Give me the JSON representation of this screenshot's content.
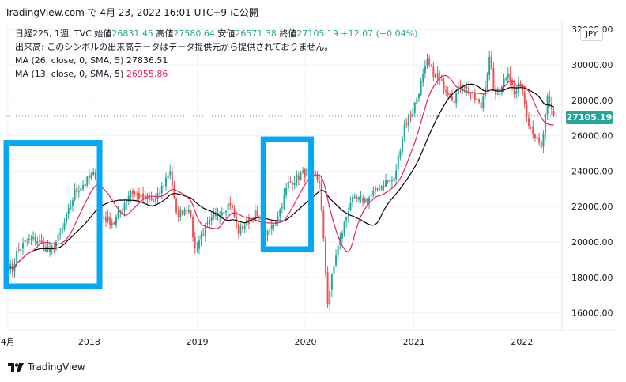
{
  "header": {
    "text": "TradingView.com で 4月 23, 2022 16:01 UTC+9 に公開"
  },
  "legend": {
    "symbol_info": "日経225, 1週, TVC",
    "open_label": "始値",
    "open_value": "26831.45",
    "high_label": "高値",
    "high_value": "27580.64",
    "low_label": "安値",
    "low_value": "26571.38",
    "close_label": "終値",
    "close_value": "27105.19",
    "change": "+12.07 (+0.04%)",
    "volume_note": "出来高: このシンボルの出来高データはデータ提供元から提供されておりません。",
    "ma26_label": "MA (26, close, 0, SMA, 5)",
    "ma26_value": "27836.51",
    "ma13_label": "MA (13, close, 0, SMA, 5)",
    "ma13_value": "26955.86"
  },
  "price_scale": {
    "currency": "JPY",
    "last_price": "27105.19"
  },
  "footer": {
    "brand": "TradingView"
  },
  "colors": {
    "up": "#26a69a",
    "down": "#ef5350",
    "ma26": "#000000",
    "ma13": "#e91e63",
    "highlight_box": "#03a9f4"
  },
  "chart_data": {
    "type": "candlestick",
    "interval": "1週",
    "ylim": [
      15000,
      32500
    ],
    "yticks": [
      16000,
      18000,
      20000,
      22000,
      24000,
      26000,
      28000,
      30000,
      32000
    ],
    "ytick_labels": [
      "16000.00",
      "18000.00",
      "20000.00",
      "22000.00",
      "24000.00",
      "26000.00",
      "28000.00",
      "30000.00",
      "32000.00"
    ],
    "xticks": [
      "2017-04-01",
      "2018-01-01",
      "2019-01-01",
      "2020-01-01",
      "2021-01-01",
      "2022-01-01"
    ],
    "xtick_labels": [
      "4月",
      "2018",
      "2019",
      "2020",
      "2021",
      "2022"
    ],
    "xlim": [
      "2017-03-27",
      "2022-05-16"
    ],
    "last_close": 27105.19,
    "price_anchors": [
      [
        "2017-04-03",
        18700
      ],
      [
        "2017-04-17",
        18400
      ],
      [
        "2017-05-01",
        19400
      ],
      [
        "2017-06-05",
        20100
      ],
      [
        "2017-07-10",
        20100
      ],
      [
        "2017-08-21",
        19400
      ],
      [
        "2017-09-25",
        20400
      ],
      [
        "2017-10-23",
        21700
      ],
      [
        "2017-11-13",
        22800
      ],
      [
        "2018-01-08",
        23700
      ],
      [
        "2018-01-22",
        23800
      ],
      [
        "2018-02-12",
        21400
      ],
      [
        "2018-03-26",
        21100
      ],
      [
        "2018-05-21",
        22900
      ],
      [
        "2018-06-25",
        22500
      ],
      [
        "2018-08-13",
        22300
      ],
      [
        "2018-10-01",
        24100
      ],
      [
        "2018-10-22",
        21500
      ],
      [
        "2018-12-03",
        22000
      ],
      [
        "2018-12-24",
        19600
      ],
      [
        "2019-01-21",
        20600
      ],
      [
        "2019-03-04",
        21500
      ],
      [
        "2019-04-22",
        22200
      ],
      [
        "2019-05-20",
        20600
      ],
      [
        "2019-07-15",
        21600
      ],
      [
        "2019-08-26",
        20400
      ],
      [
        "2019-10-07",
        21800
      ],
      [
        "2019-11-04",
        23300
      ],
      [
        "2019-12-16",
        23800
      ],
      [
        "2020-01-13",
        24000
      ],
      [
        "2020-02-17",
        23400
      ],
      [
        "2020-03-16",
        16600
      ],
      [
        "2020-04-13",
        19300
      ],
      [
        "2020-06-01",
        22300
      ],
      [
        "2020-07-27",
        22400
      ],
      [
        "2020-09-28",
        23400
      ],
      [
        "2020-10-26",
        23500
      ],
      [
        "2020-11-30",
        26600
      ],
      [
        "2020-12-28",
        27400
      ],
      [
        "2021-02-15",
        30100
      ],
      [
        "2021-03-22",
        29200
      ],
      [
        "2021-05-17",
        28100
      ],
      [
        "2021-06-14",
        29000
      ],
      [
        "2021-08-16",
        27600
      ],
      [
        "2021-09-13",
        30300
      ],
      [
        "2021-10-04",
        28100
      ],
      [
        "2021-11-15",
        29700
      ],
      [
        "2021-12-06",
        28300
      ],
      [
        "2021-12-27",
        29000
      ],
      [
        "2022-01-24",
        26800
      ],
      [
        "2022-03-07",
        25200
      ],
      [
        "2022-03-28",
        28000
      ],
      [
        "2022-04-18",
        27105.19
      ]
    ],
    "moving_averages": [
      {
        "name": "MA (26, close, 0, SMA, 5)",
        "period": 26
      },
      {
        "name": "MA (13, close, 0, SMA, 5)",
        "period": 13
      }
    ],
    "annotations": [
      {
        "type": "rectangle",
        "from": "2017-03-27",
        "to": "2018-02-05",
        "price_range": [
          17500,
          25600
        ]
      },
      {
        "type": "rectangle",
        "from": "2019-08-12",
        "to": "2020-01-20",
        "price_range": [
          19600,
          25800
        ]
      }
    ]
  }
}
